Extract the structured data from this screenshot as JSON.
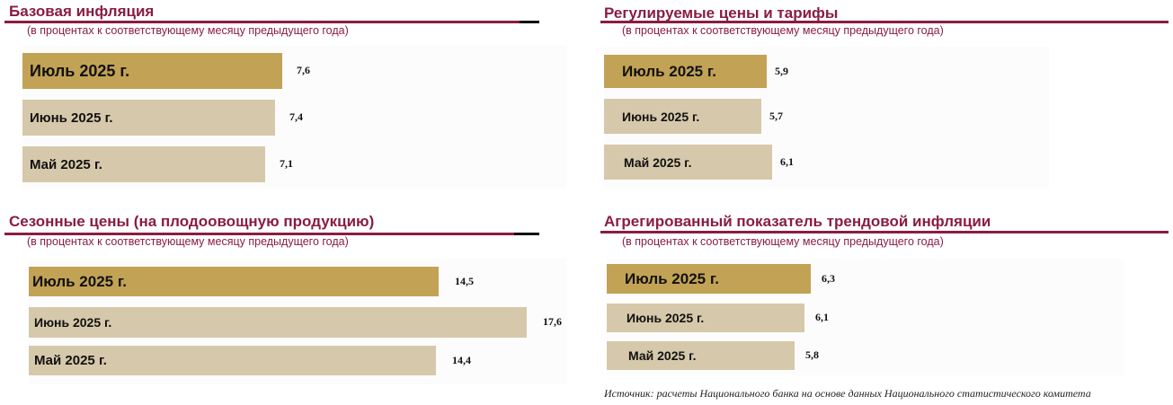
{
  "colors": {
    "title": "#8a1c43",
    "current_bar": "#c2a255",
    "previous_bar": "#d6c8aa"
  },
  "chart_data": [
    {
      "type": "bar",
      "title": "Базовая инфляция",
      "subtitle": "(в процентах к соответствующему месяцу предыдущего года)",
      "categories": [
        "Июль 2025 г.",
        "Июнь 2025 г.",
        "Май 2025 г."
      ],
      "values": [
        7.6,
        7.4,
        7.1
      ],
      "labels": [
        "7,6",
        "7,4",
        "7,1"
      ]
    },
    {
      "type": "bar",
      "title": "Регулируемые цены и тарифы",
      "subtitle": "(в процентах к соответствующему месяцу предыдущего года)",
      "categories": [
        "Июль 2025 г.",
        "Июнь 2025 г.",
        "Май 2025 г."
      ],
      "values": [
        5.9,
        5.7,
        6.1
      ],
      "labels": [
        "5,9",
        "5,7",
        "6,1"
      ]
    },
    {
      "type": "bar",
      "title": "Сезонные цены (на плодоовощную продукцию)",
      "subtitle": "(в процентах к соответствующему месяцу предыдущего года)",
      "categories": [
        "Июль 2025 г.",
        "Июнь 2025 г.",
        "Май 2025 г."
      ],
      "values": [
        14.5,
        17.6,
        14.4
      ],
      "labels": [
        "14,5",
        "17,6",
        "14,4"
      ]
    },
    {
      "type": "bar",
      "title": "Агрегированный показатель трендовой инфляции",
      "subtitle": "(в процентах к соответствующему месяцу предыдущего года)",
      "categories": [
        "Июль 2025 г.",
        "Июнь 2025 г.",
        "Май 2025 г."
      ],
      "values": [
        6.3,
        6.1,
        5.8
      ],
      "labels": [
        "6,3",
        "6,1",
        "5,8"
      ]
    }
  ],
  "source": "Источник: расчеты Национального банка на основе данных Национального статистического комитета"
}
